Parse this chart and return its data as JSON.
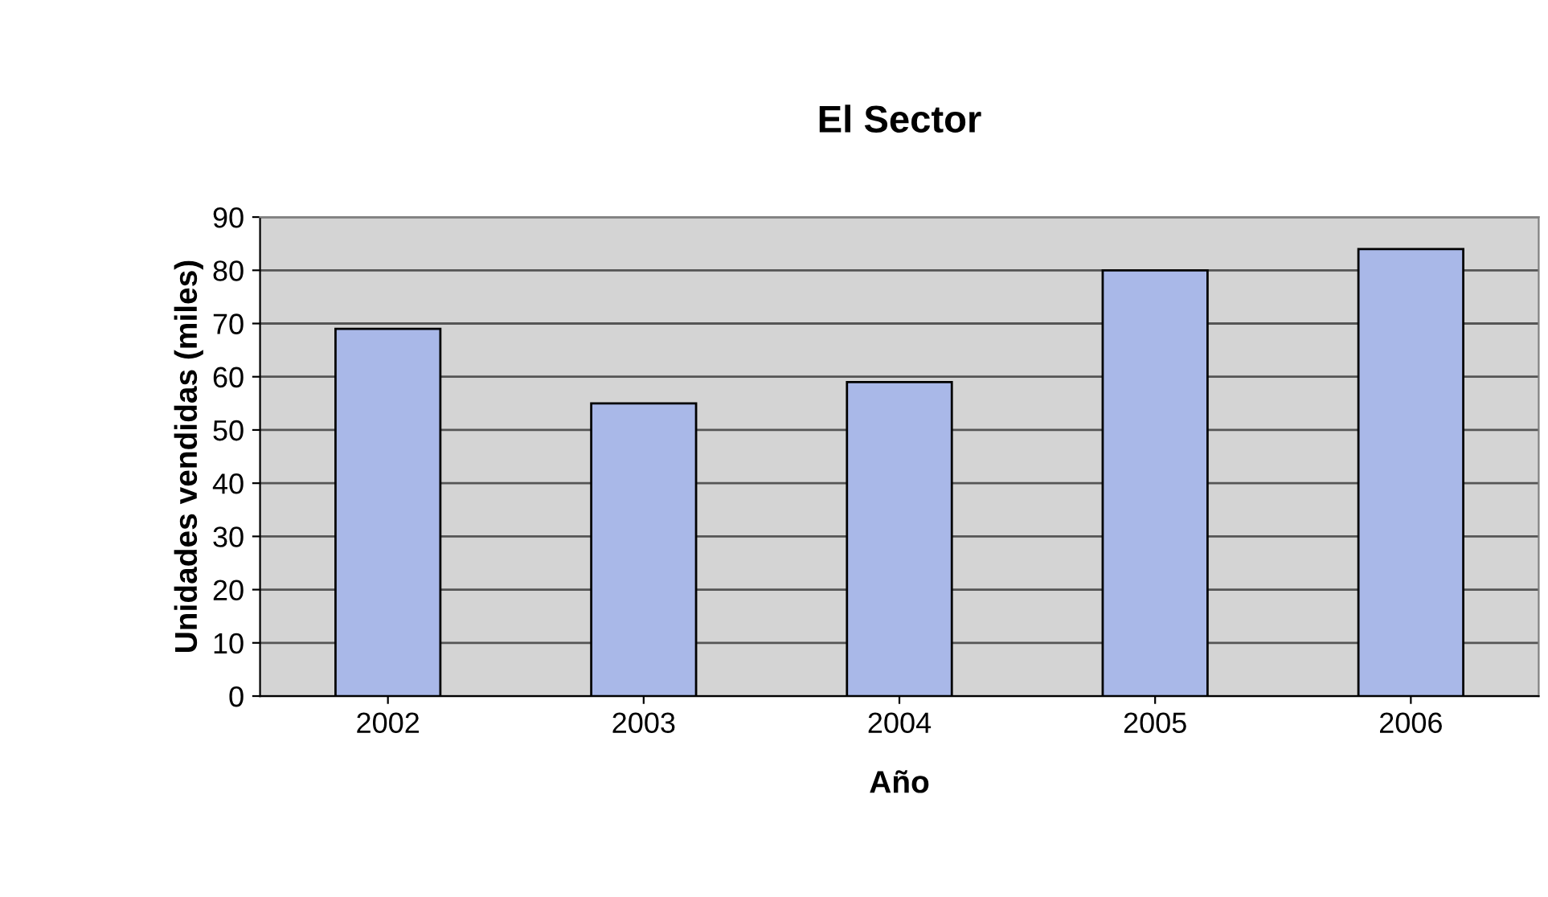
{
  "chart_data": {
    "type": "bar",
    "title": "El Sector",
    "xlabel": "Año",
    "ylabel": "Unidades vendidas (miles)",
    "categories": [
      "2002",
      "2003",
      "2004",
      "2005",
      "2006"
    ],
    "values": [
      69,
      55,
      59,
      80,
      84
    ],
    "color": "#a9b8e8",
    "ylim": [
      0,
      90
    ],
    "yticks": [
      0,
      10,
      20,
      30,
      40,
      50,
      60,
      70,
      80,
      90
    ],
    "grid": "y",
    "legend": false
  }
}
